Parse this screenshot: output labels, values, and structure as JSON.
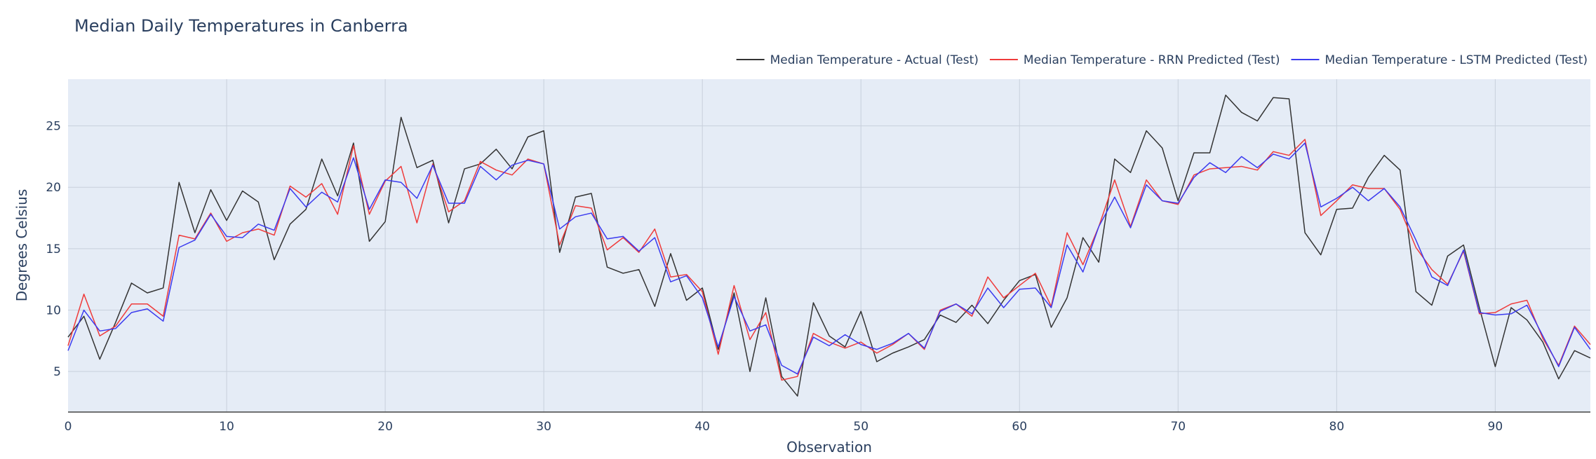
{
  "chart_data": {
    "type": "line",
    "title": "Median Daily Temperatures in Canberra",
    "xlabel": "Observation",
    "ylabel": "Degrees Celsius",
    "xlim": [
      0,
      96
    ],
    "ylim": [
      1.7,
      28.8
    ],
    "xticks": [
      0,
      10,
      20,
      30,
      40,
      50,
      60,
      70,
      80,
      90
    ],
    "yticks": [
      5,
      10,
      15,
      20,
      25
    ],
    "grid": true,
    "legend_position": "top-right",
    "series": [
      {
        "name": "Median Temperature - Actual (Test)",
        "color": "#333333",
        "values": [
          7.8,
          9.5,
          6.0,
          9.0,
          12.2,
          11.4,
          11.8,
          20.4,
          16.3,
          19.8,
          17.3,
          19.7,
          18.8,
          14.1,
          17.0,
          18.2,
          22.3,
          19.3,
          23.6,
          15.6,
          17.2,
          25.7,
          21.6,
          22.2,
          17.1,
          21.5,
          21.9,
          23.1,
          21.5,
          24.1,
          24.6,
          14.7,
          19.2,
          19.5,
          13.5,
          13.0,
          13.3,
          10.3,
          14.6,
          10.8,
          11.8,
          6.8,
          11.4,
          5.0,
          11.0,
          4.6,
          3.0,
          10.6,
          7.9,
          7.0,
          9.9,
          5.8,
          6.5,
          7.0,
          7.6,
          9.6,
          9.0,
          10.4,
          8.9,
          10.8,
          12.4,
          12.9,
          8.6,
          11.0,
          15.9,
          13.9,
          22.3,
          21.2,
          24.6,
          23.2,
          18.9,
          22.8,
          22.8,
          27.5,
          26.1,
          25.4,
          27.3,
          27.2,
          16.3,
          14.5,
          18.2,
          18.3,
          20.8,
          22.6,
          21.4,
          11.5,
          10.4,
          14.4,
          15.3,
          10.2,
          5.4,
          10.2,
          9.2,
          7.4,
          4.4,
          6.7,
          6.1
        ]
      },
      {
        "name": "Median Temperature - RRN Predicted (Test)",
        "color": "#ef3b3b",
        "values": [
          7.1,
          11.3,
          7.9,
          8.7,
          10.5,
          10.5,
          9.5,
          16.1,
          15.8,
          17.9,
          15.6,
          16.3,
          16.6,
          16.1,
          20.1,
          19.2,
          20.3,
          17.8,
          23.4,
          17.8,
          20.5,
          21.7,
          17.1,
          21.9,
          18.0,
          18.9,
          22.1,
          21.4,
          21.0,
          22.3,
          21.9,
          15.3,
          18.5,
          18.3,
          14.9,
          15.9,
          14.7,
          16.6,
          12.7,
          12.9,
          11.5,
          6.4,
          12.0,
          7.6,
          9.8,
          4.3,
          4.6,
          8.1,
          7.4,
          6.9,
          7.4,
          6.5,
          7.2,
          8.1,
          6.8,
          10.0,
          10.5,
          9.5,
          12.7,
          11.0,
          12.0,
          13.0,
          10.3,
          16.3,
          13.7,
          16.8,
          20.6,
          16.8,
          20.6,
          18.9,
          18.6,
          21.0,
          21.5,
          21.6,
          21.7,
          21.4,
          22.9,
          22.6,
          23.9,
          17.7,
          18.9,
          20.2,
          19.9,
          19.9,
          18.2,
          15.1,
          13.3,
          12.1,
          14.8,
          9.7,
          9.8,
          10.5,
          10.8,
          7.7,
          5.5,
          8.7,
          7.2
        ]
      },
      {
        "name": "Median Temperature - LSTM Predicted (Test)",
        "color": "#3b3bef",
        "values": [
          6.7,
          10.0,
          8.3,
          8.5,
          9.8,
          10.1,
          9.1,
          15.1,
          15.7,
          17.8,
          16.0,
          15.9,
          17.0,
          16.5,
          19.9,
          18.4,
          19.6,
          18.8,
          22.4,
          18.2,
          20.6,
          20.4,
          19.1,
          21.8,
          18.7,
          18.7,
          21.7,
          20.6,
          21.8,
          22.2,
          21.9,
          16.6,
          17.6,
          17.9,
          15.8,
          16.0,
          14.8,
          15.9,
          12.3,
          12.8,
          11.0,
          7.0,
          11.1,
          8.3,
          8.8,
          5.5,
          4.8,
          7.8,
          7.1,
          8.0,
          7.2,
          6.8,
          7.3,
          8.1,
          6.9,
          9.9,
          10.5,
          9.7,
          11.8,
          10.2,
          11.7,
          11.8,
          10.2,
          15.3,
          13.1,
          16.8,
          19.2,
          16.7,
          20.2,
          18.9,
          18.7,
          20.8,
          22.0,
          21.2,
          22.5,
          21.6,
          22.7,
          22.3,
          23.6,
          18.4,
          19.1,
          20.0,
          18.9,
          19.9,
          18.4,
          15.7,
          12.7,
          12.0,
          14.9,
          9.8,
          9.6,
          9.7,
          10.4,
          7.9,
          5.4,
          8.6,
          6.8
        ]
      }
    ]
  }
}
